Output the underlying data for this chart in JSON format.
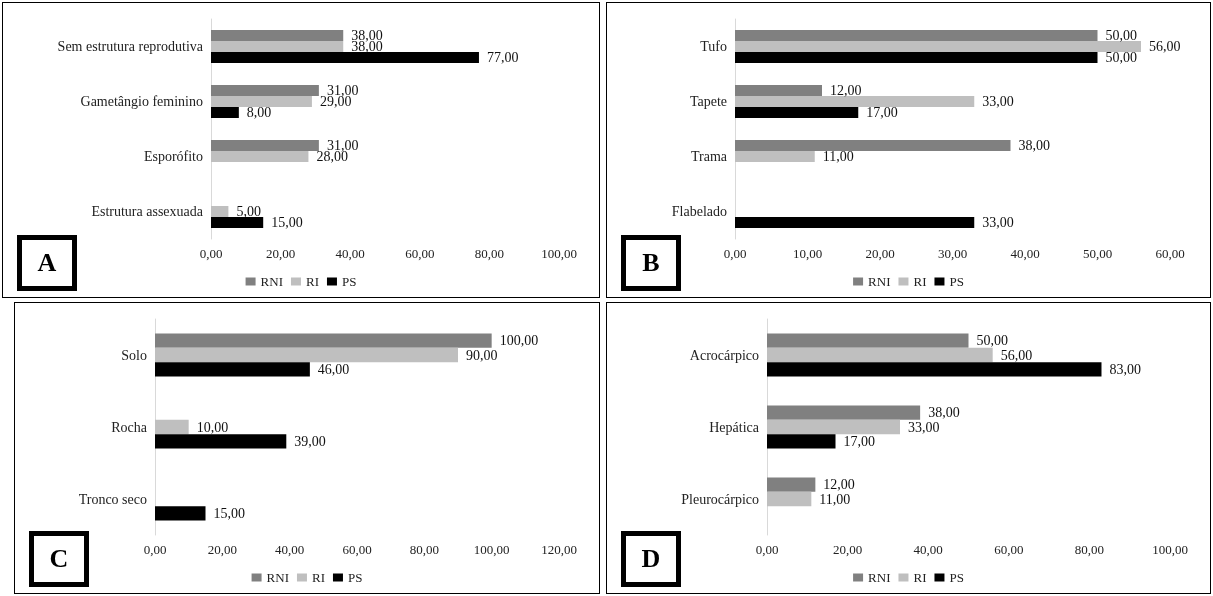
{
  "chart_data": [
    {
      "type": "bar",
      "orientation": "horizontal",
      "annotations": [
        "A"
      ],
      "legend": "bottom",
      "grid": false,
      "categories": [
        "Sem estrutura reprodutiva",
        "Gametângio feminino",
        "Esporófito",
        "Estrutura assexuada"
      ],
      "xlim": [
        0,
        100
      ],
      "xticks": [
        {
          "value": 0,
          "label": "0,00"
        },
        {
          "value": 20,
          "label": "20,00"
        },
        {
          "value": 40,
          "label": "40,00"
        },
        {
          "value": 60,
          "label": "60,00"
        },
        {
          "value": 80,
          "label": "80,00"
        },
        {
          "value": 100,
          "label": "100,00"
        }
      ],
      "series": [
        {
          "name": "RNI",
          "color": "#808080",
          "values": [
            38,
            31,
            31,
            null
          ],
          "value_labels": [
            "38,00",
            "31,00",
            "31,00",
            null
          ]
        },
        {
          "name": "RI",
          "color": "#bfbfbf",
          "values": [
            38,
            29,
            28,
            5
          ],
          "value_labels": [
            "38,00",
            "29,00",
            "28,00",
            "5,00"
          ]
        },
        {
          "name": "PS",
          "color": "#000000",
          "values": [
            77,
            8,
            null,
            15
          ],
          "value_labels": [
            "77,00",
            "8,00",
            null,
            "15,00"
          ]
        }
      ]
    },
    {
      "type": "bar",
      "orientation": "horizontal",
      "annotations": [
        "B"
      ],
      "legend": "bottom",
      "grid": false,
      "categories": [
        "Tufo",
        "Tapete",
        "Trama",
        "Flabelado"
      ],
      "xlim": [
        0,
        60
      ],
      "xticks": [
        {
          "value": 0,
          "label": "0,00"
        },
        {
          "value": 10,
          "label": "10,00"
        },
        {
          "value": 20,
          "label": "20,00"
        },
        {
          "value": 30,
          "label": "30,00"
        },
        {
          "value": 40,
          "label": "40,00"
        },
        {
          "value": 50,
          "label": "50,00"
        },
        {
          "value": 60,
          "label": "60,00"
        }
      ],
      "series": [
        {
          "name": "RNI",
          "color": "#808080",
          "values": [
            50,
            12,
            38,
            null
          ],
          "value_labels": [
            "50,00",
            "12,00",
            "38,00",
            null
          ]
        },
        {
          "name": "RI",
          "color": "#bfbfbf",
          "values": [
            56,
            33,
            11,
            null
          ],
          "value_labels": [
            "56,00",
            "33,00",
            "11,00",
            null
          ]
        },
        {
          "name": "PS",
          "color": "#000000",
          "values": [
            50,
            17,
            null,
            33
          ],
          "value_labels": [
            "50,00",
            "17,00",
            null,
            "33,00"
          ]
        }
      ]
    },
    {
      "type": "bar",
      "orientation": "horizontal",
      "annotations": [
        "C"
      ],
      "legend": "bottom",
      "grid": false,
      "categories": [
        "Solo",
        "Rocha",
        "Tronco seco"
      ],
      "xlim": [
        0,
        120
      ],
      "xticks": [
        {
          "value": 0,
          "label": "0,00"
        },
        {
          "value": 20,
          "label": "20,00"
        },
        {
          "value": 40,
          "label": "40,00"
        },
        {
          "value": 60,
          "label": "60,00"
        },
        {
          "value": 80,
          "label": "80,00"
        },
        {
          "value": 100,
          "label": "100,00"
        },
        {
          "value": 120,
          "label": "120,00"
        }
      ],
      "series": [
        {
          "name": "RNI",
          "color": "#808080",
          "values": [
            100,
            null,
            null
          ],
          "value_labels": [
            "100,00",
            null,
            null
          ]
        },
        {
          "name": "RI",
          "color": "#bfbfbf",
          "values": [
            90,
            10,
            null
          ],
          "value_labels": [
            "90,00",
            "10,00",
            null
          ]
        },
        {
          "name": "PS",
          "color": "#000000",
          "values": [
            46,
            39,
            15
          ],
          "value_labels": [
            "46,00",
            "39,00",
            "15,00"
          ]
        }
      ]
    },
    {
      "type": "bar",
      "orientation": "horizontal",
      "annotations": [
        "D"
      ],
      "legend": "bottom",
      "grid": false,
      "categories": [
        "Acrocárpico",
        "Hepática",
        "Pleurocárpico"
      ],
      "xlim": [
        0,
        100
      ],
      "xticks": [
        {
          "value": 0,
          "label": "0,00"
        },
        {
          "value": 20,
          "label": "20,00"
        },
        {
          "value": 40,
          "label": "40,00"
        },
        {
          "value": 60,
          "label": "60,00"
        },
        {
          "value": 80,
          "label": "80,00"
        },
        {
          "value": 100,
          "label": "100,00"
        }
      ],
      "series": [
        {
          "name": "RNI",
          "color": "#808080",
          "values": [
            50,
            38,
            12
          ],
          "value_labels": [
            "50,00",
            "38,00",
            "12,00"
          ]
        },
        {
          "name": "RI",
          "color": "#bfbfbf",
          "values": [
            56,
            33,
            11
          ],
          "value_labels": [
            "56,00",
            "33,00",
            "11,00"
          ]
        },
        {
          "name": "PS",
          "color": "#000000",
          "values": [
            83,
            17,
            null
          ],
          "value_labels": [
            "83,00",
            "17,00",
            null
          ]
        }
      ]
    }
  ]
}
